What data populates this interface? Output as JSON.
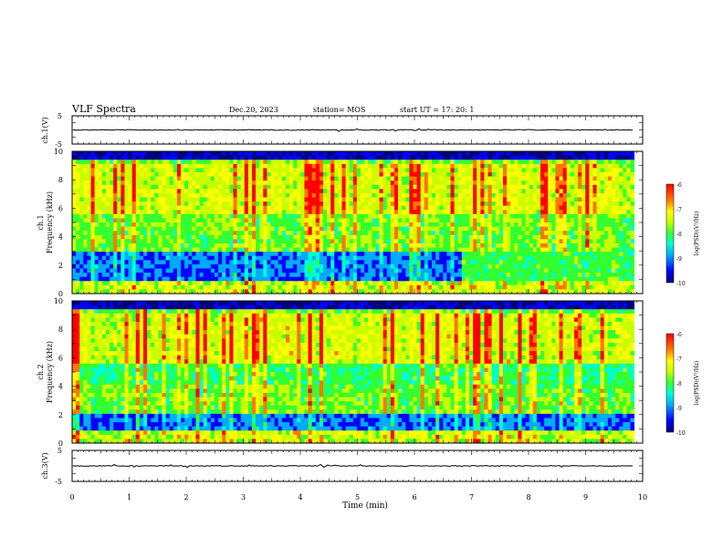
{
  "header": {
    "title": "VLF Spectra",
    "date": "Dec.20, 2023",
    "station": "station= MOS",
    "start": "start  UT =   17: 20: 1"
  },
  "chart_data": [
    {
      "type": "line",
      "name": "ch.1 waveform",
      "ylabel": "ch.1(V)",
      "ylim": [
        -5,
        5
      ],
      "yticks": [
        "5",
        "-5"
      ],
      "xlim": [
        0,
        10
      ],
      "baseline": 0
    },
    {
      "type": "heatmap",
      "name": "ch.1 spectrogram",
      "ylabel_line1": "ch.1",
      "ylabel_line2": "Frequency (kHz)",
      "ylim": [
        0,
        10
      ],
      "yticks": [
        "0",
        "2",
        "4",
        "6",
        "8",
        "10"
      ],
      "xlim": [
        0,
        10
      ],
      "data_end_min": 9.85,
      "colorbar": {
        "label": "log(PSD)(V²/Hz)",
        "range": [
          -10,
          -6
        ],
        "ticks": [
          "-6",
          "-7",
          "-8",
          "-9",
          "-10"
        ]
      },
      "features": {
        "peak_band_khz": [
          5.5,
          9.0
        ],
        "noise_band_khz": [
          0.8,
          2.8
        ],
        "regime_change_min": 6.8
      }
    },
    {
      "type": "heatmap",
      "name": "ch.2 spectrogram",
      "ylabel_line1": "ch.2",
      "ylabel_line2": "Frequency (kHz)",
      "ylim": [
        0,
        10
      ],
      "yticks": [
        "0",
        "2",
        "4",
        "6",
        "8",
        "10"
      ],
      "xlim": [
        0,
        10
      ],
      "data_end_min": 9.85,
      "colorbar": {
        "label": "log(PSD)(V²/Hz)",
        "range": [
          -10,
          -6
        ],
        "ticks": [
          "-6",
          "-7",
          "-8",
          "-9",
          "-10"
        ]
      },
      "features": {
        "peak_band_khz": [
          5.5,
          9.0
        ],
        "noise_band_khz": [
          0.8,
          2.2
        ]
      }
    },
    {
      "type": "line",
      "name": "ch.3 waveform",
      "ylabel": "ch.3(V)",
      "ylim": [
        -5,
        5
      ],
      "yticks": [
        "5",
        "-5"
      ],
      "xlim": [
        0,
        10
      ],
      "baseline": 0
    }
  ],
  "xaxis": {
    "label": "Time (min)",
    "ticks": [
      "0",
      "1",
      "2",
      "3",
      "4",
      "5",
      "6",
      "7",
      "8",
      "9",
      "10"
    ]
  },
  "colors": {
    "colormap": [
      "#00007f",
      "#0000ff",
      "#00aaff",
      "#00ffcc",
      "#33ff33",
      "#c8ff00",
      "#ffff00",
      "#ff7700",
      "#ff0000"
    ]
  }
}
